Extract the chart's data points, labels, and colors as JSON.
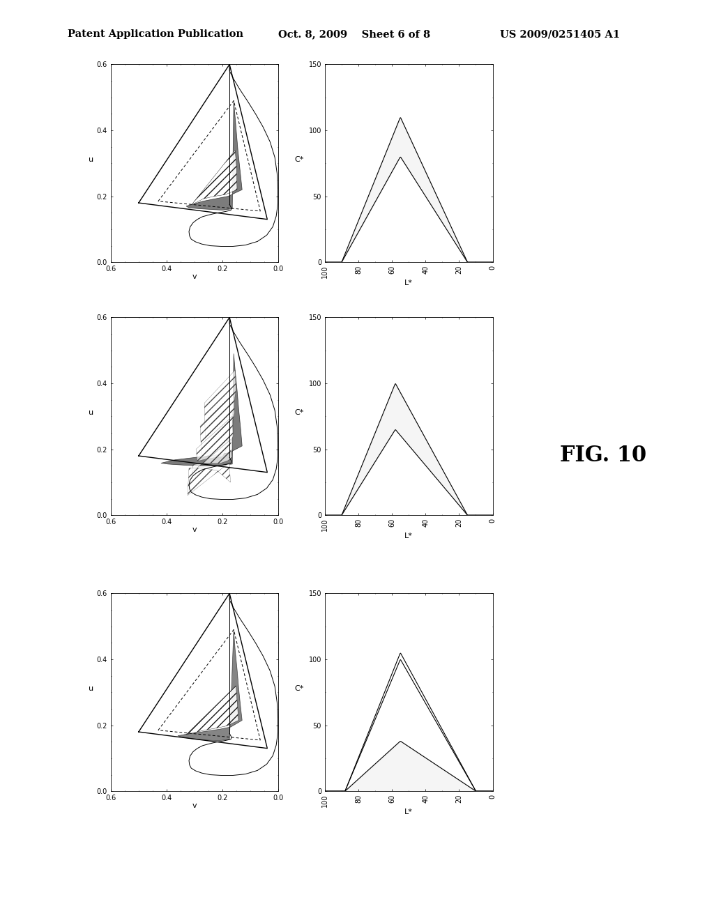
{
  "header_left": "Patent Application Publication",
  "header_center": "Oct. 8, 2009    Sheet 6 of 8",
  "header_right": "US 2009/0251405 A1",
  "figure_label": "FIG. 10",
  "background_color": "#ffffff",
  "uv_xlim": [
    0.0,
    0.6
  ],
  "uv_ylim": [
    0.0,
    0.6
  ],
  "uv_xticks": [
    0.0,
    0.2,
    0.4,
    0.6
  ],
  "uv_yticks": [
    0.0,
    0.2,
    0.4,
    0.6
  ],
  "uv_xlabel": "v",
  "uv_ylabel": "u",
  "lc_xlim": [
    0,
    100
  ],
  "lc_ylim": [
    0,
    150
  ],
  "lc_xticks": [
    0,
    20,
    40,
    60,
    80,
    100
  ],
  "lc_yticks": [
    0,
    50,
    100,
    150
  ],
  "lc_xlabel": "L*",
  "lc_ylabel": "C*",
  "spectral_locus_v": [
    0.175,
    0.175,
    0.16,
    0.138,
    0.11,
    0.082,
    0.055,
    0.03,
    0.013,
    0.005,
    0.002,
    0.002,
    0.008,
    0.02,
    0.042,
    0.075,
    0.118,
    0.163,
    0.205,
    0.244,
    0.274,
    0.297,
    0.312,
    0.318,
    0.32,
    0.316,
    0.305,
    0.29,
    0.272,
    0.251,
    0.232,
    0.215,
    0.2,
    0.188,
    0.178,
    0.17,
    0.168,
    0.175
  ],
  "spectral_locus_u": [
    0.6,
    0.58,
    0.555,
    0.524,
    0.488,
    0.45,
    0.41,
    0.365,
    0.318,
    0.27,
    0.222,
    0.178,
    0.14,
    0.108,
    0.082,
    0.063,
    0.052,
    0.048,
    0.048,
    0.05,
    0.055,
    0.062,
    0.07,
    0.08,
    0.093,
    0.107,
    0.12,
    0.13,
    0.138,
    0.143,
    0.147,
    0.15,
    0.152,
    0.154,
    0.156,
    0.158,
    0.164,
    0.175
  ],
  "outer_triangle_v": [
    0.5,
    0.175,
    0.04,
    0.5
  ],
  "outer_triangle_u": [
    0.18,
    0.6,
    0.13,
    0.18
  ],
  "row0_inner_tri_v": [
    0.43,
    0.16,
    0.065,
    0.43
  ],
  "row0_inner_tri_u": [
    0.185,
    0.49,
    0.155,
    0.185
  ],
  "row0_has_dashed": true,
  "row1_inner_tri_v": [
    0.43,
    0.16,
    0.065,
    0.43
  ],
  "row1_inner_tri_u": [
    0.185,
    0.49,
    0.155,
    0.185
  ],
  "row1_has_dashed": false,
  "row2_inner_tri_v": [
    0.43,
    0.16,
    0.065,
    0.43
  ],
  "row2_inner_tri_u": [
    0.185,
    0.49,
    0.155,
    0.185
  ],
  "row2_has_dashed": true
}
